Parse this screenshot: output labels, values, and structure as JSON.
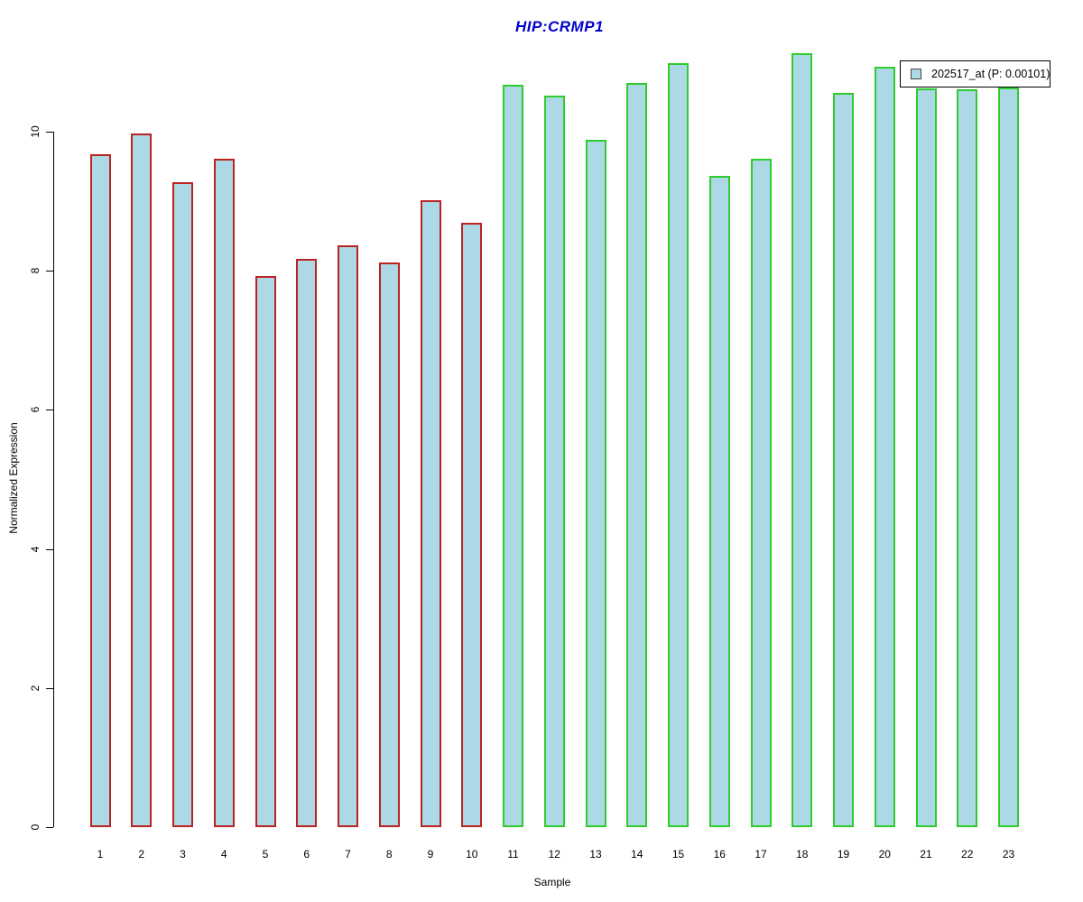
{
  "chart_data": {
    "type": "bar",
    "title": "HIP:CRMP1",
    "title_color": "#0000CD",
    "xlabel": "Sample",
    "ylabel": "Normalized Expression",
    "categories": [
      "1",
      "2",
      "3",
      "4",
      "5",
      "6",
      "7",
      "8",
      "9",
      "10",
      "11",
      "12",
      "13",
      "14",
      "15",
      "16",
      "17",
      "18",
      "19",
      "20",
      "21",
      "22",
      "23"
    ],
    "values": [
      9.67,
      9.97,
      9.28,
      9.61,
      7.93,
      8.17,
      8.37,
      8.12,
      9.01,
      8.69,
      10.68,
      10.52,
      9.88,
      10.7,
      10.98,
      9.37,
      9.61,
      11.13,
      10.56,
      10.94,
      10.62,
      10.61,
      10.63
    ],
    "bar_fill_color": "#ADD8E6",
    "groups": [
      {
        "start_index": 0,
        "end_index": 9,
        "border_color": "#BB2222"
      },
      {
        "start_index": 10,
        "end_index": 22,
        "border_color": "#2ECC2E"
      }
    ],
    "yticks": [
      0,
      2,
      4,
      6,
      8,
      10
    ],
    "ylim": [
      0,
      11.2
    ],
    "grid": false,
    "legend_position": "top-right"
  },
  "legend": {
    "label": "202517_at (P: 0.00101)",
    "swatch_color": "#ADD8E6"
  }
}
